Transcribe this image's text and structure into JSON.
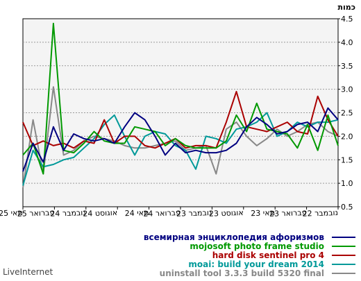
{
  "footer_text": "LiveInternet",
  "chart_data": {
    "type": "line",
    "unit_label": "כמות",
    "ylim": [
      0.5,
      4.5
    ],
    "yticks": [
      0.5,
      1.0,
      1.5,
      2.0,
      2.5,
      3.0,
      3.5,
      4.0,
      4.5
    ],
    "grid": "horizontal dashed",
    "x_order": "right-to-left",
    "x_labels": [
      "נובמבר 22",
      "פברואר 23",
      "מאי 23",
      "אוגוסט 23",
      "נובמבר 23",
      "פברואר 24",
      "מאי 24",
      "אוגוסט 24",
      "נובמבר 24",
      "פברואר 25",
      "מאי 25"
    ],
    "legend_position": "bottom-right",
    "series": [
      {
        "name": "всемирная энциклопедия афоризмов",
        "color": "#000080",
        "values": [
          2.35,
          2.6,
          2.1,
          2.3,
          2.25,
          2.1,
          2.05,
          2.25,
          2.4,
          2.2,
          1.85,
          1.7,
          1.65,
          1.65,
          1.7,
          1.65,
          1.85,
          1.6,
          2.0,
          2.35,
          2.5,
          2.2,
          1.85,
          1.95,
          1.9,
          1.95,
          2.05,
          1.7,
          2.2,
          1.45,
          1.85,
          1.25
        ]
      },
      {
        "name": "mojosoft photo frame studio",
        "color": "#009900",
        "values": [
          1.8,
          2.45,
          1.7,
          2.25,
          1.75,
          2.05,
          2.1,
          2.15,
          2.7,
          2.1,
          2.45,
          1.9,
          1.75,
          1.75,
          1.75,
          1.8,
          1.95,
          1.8,
          2.1,
          2.15,
          2.2,
          1.85,
          1.85,
          1.9,
          2.1,
          1.85,
          1.65,
          1.7,
          4.4,
          1.2,
          1.85,
          1.6
        ]
      },
      {
        "name": "hard disk sentinel pro 4",
        "color": "#aa0000",
        "values": [
          2.0,
          2.35,
          2.85,
          2.05,
          2.1,
          2.3,
          2.2,
          2.1,
          2.15,
          2.2,
          2.95,
          2.3,
          1.75,
          1.8,
          1.8,
          1.75,
          1.95,
          1.85,
          1.75,
          1.8,
          2.0,
          2.0,
          1.85,
          2.35,
          1.85,
          1.9,
          1.75,
          1.85,
          1.8,
          1.9,
          1.8,
          2.3
        ]
      },
      {
        "name": "moai: build your dream 2014",
        "color": "#009999",
        "values": [
          2.35,
          2.3,
          2.3,
          2.2,
          2.3,
          2.1,
          2.0,
          2.5,
          2.3,
          2.2,
          2.15,
          1.85,
          1.95,
          2.0,
          1.3,
          1.7,
          1.8,
          2.05,
          2.1,
          2.0,
          1.6,
          2.0,
          2.45,
          2.25,
          1.95,
          1.75,
          1.55,
          1.5,
          1.4,
          1.35,
          1.7,
          0.95
        ]
      },
      {
        "name": "uninstall tool 3.3.3 build 5320 final",
        "color": "#888888",
        "values": [
          2.0,
          2.1,
          2.3,
          2.25,
          2.1,
          2.0,
          2.15,
          1.95,
          1.8,
          2.0,
          2.3,
          2.15,
          1.2,
          1.8,
          1.75,
          1.7,
          1.9,
          1.85,
          1.8,
          1.75,
          1.75,
          1.8,
          1.9,
          1.95,
          2.0,
          1.9,
          1.7,
          1.6,
          3.05,
          1.2,
          2.35,
          0.9
        ]
      }
    ]
  }
}
